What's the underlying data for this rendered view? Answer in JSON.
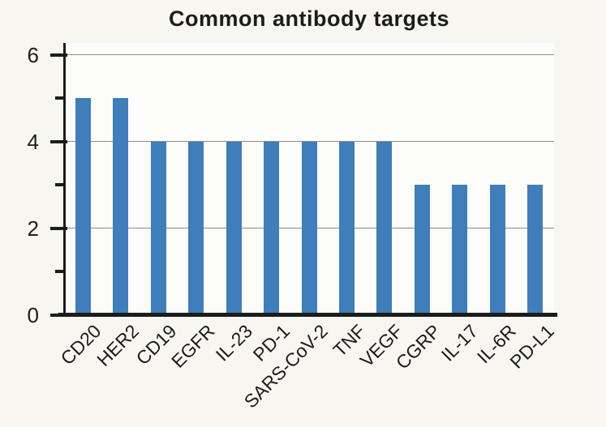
{
  "page": {
    "background": "#f7f6f1"
  },
  "chart_data": {
    "type": "bar",
    "title": "Common antibody targets",
    "categories": [
      "CD20",
      "HER2",
      "CD19",
      "EGFR",
      "IL-23",
      "PD-1",
      "SARS-CoV-2",
      "TNF",
      "VEGF",
      "CGRP",
      "IL-17",
      "IL-6R",
      "PD-L1"
    ],
    "values": [
      5,
      5,
      4,
      4,
      4,
      4,
      4,
      4,
      4,
      3,
      3,
      3,
      3
    ],
    "xlabel": "",
    "ylabel": "",
    "ylim": [
      0,
      6
    ],
    "yticks_major": [
      0,
      2,
      4,
      6
    ],
    "yticks_minor": [
      1,
      3,
      5
    ],
    "gridlines_at": [
      2,
      4,
      6
    ],
    "grid": "horizontal-only",
    "legend": "none",
    "x_label_rotation_deg": 45,
    "colors": {
      "bar": "#3f7eb8",
      "axis": "#1c1c1c",
      "grid": "#8b8b8b",
      "text": "#1c1c1c",
      "background": "#f7f6f1",
      "plot_background": "#fcfcfa"
    }
  }
}
